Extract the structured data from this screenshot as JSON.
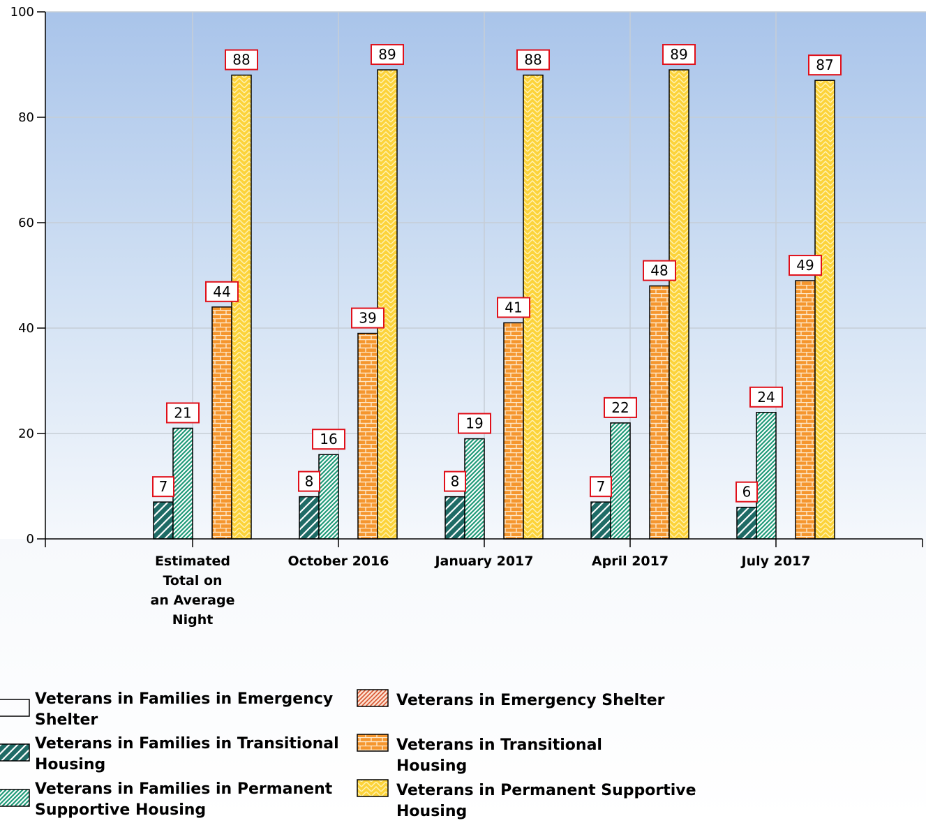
{
  "chart_data": {
    "type": "bar",
    "title": "",
    "xlabel": "",
    "ylabel": "",
    "ylim": [
      0,
      100
    ],
    "yticks": [
      0,
      20,
      40,
      60,
      80,
      100
    ],
    "grid": true,
    "legend_position": "bottom",
    "categories": [
      [
        "Estimated",
        "Total on",
        "an Average",
        "Night"
      ],
      [
        "October 2016"
      ],
      [
        "January 2017"
      ],
      [
        "April 2017"
      ],
      [
        "July 2017"
      ]
    ],
    "series": [
      {
        "name": "Veterans in Families in Emergency Shelter",
        "values": [
          null,
          null,
          null,
          null,
          null
        ],
        "color": "#4f8ff0",
        "pattern": "solid"
      },
      {
        "name": "Veterans in Families in Transitional Housing",
        "values": [
          7,
          8,
          8,
          7,
          6
        ],
        "color": "#1f6b66",
        "pattern": "wide-diagonal"
      },
      {
        "name": "Veterans in Families in Permanent Supportive Housing",
        "values": [
          21,
          16,
          19,
          22,
          24
        ],
        "color": "#2aa583",
        "pattern": "fine-diagonal"
      },
      {
        "name": "Veterans in Emergency Shelter",
        "values": [
          null,
          null,
          null,
          null,
          null
        ],
        "color": "#f08a5d",
        "pattern": "red-diagonal"
      },
      {
        "name": "Veterans in Transitional Housing",
        "values": [
          44,
          39,
          41,
          48,
          49
        ],
        "color": "#f5962e",
        "pattern": "brick"
      },
      {
        "name": "Veterans in Permanent Supportive Housing",
        "values": [
          88,
          89,
          88,
          89,
          87
        ],
        "color": "#fbd23a",
        "pattern": "zigzag"
      }
    ],
    "legend_rows": [
      [
        [
          "Veterans in Families in Emergency",
          "Shelter"
        ],
        [
          "Veterans in Emergency Shelter"
        ]
      ],
      [
        [
          "Veterans in Families in Transitional",
          "Housing"
        ],
        [
          "Veterans in Transitional",
          "Housing"
        ]
      ],
      [
        [
          "Veterans in Families in Permanent",
          "Supportive Housing"
        ],
        [
          "Veterans in Permanent Supportive",
          "Housing"
        ]
      ]
    ]
  }
}
